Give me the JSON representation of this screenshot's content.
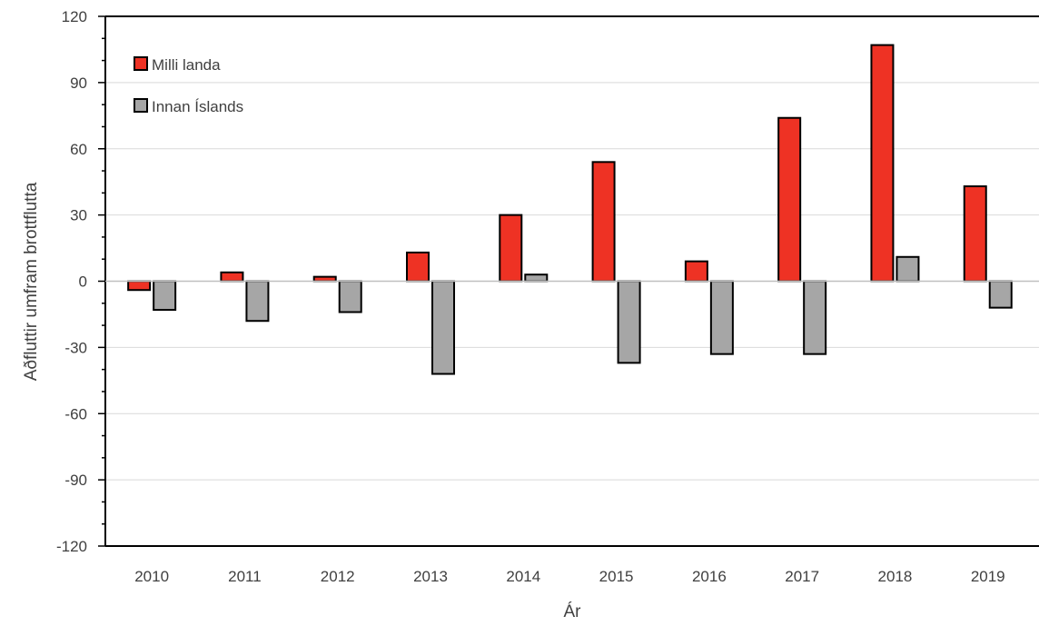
{
  "chart_data": {
    "type": "bar",
    "categories": [
      "2010",
      "2011",
      "2012",
      "2013",
      "2014",
      "2015",
      "2016",
      "2017",
      "2018",
      "2019"
    ],
    "series": [
      {
        "name": "Milli landa",
        "color": "#ee3224",
        "values": [
          -4,
          4,
          2,
          13,
          30,
          54,
          9,
          74,
          107,
          43
        ]
      },
      {
        "name": "Innan Íslands",
        "color": "#a6a6a6",
        "values": [
          -13,
          -18,
          -14,
          -42,
          3,
          -37,
          -33,
          -33,
          11,
          -12
        ]
      }
    ],
    "xlabel": "Ár",
    "ylabel": "Aðfluttir umfram brottflutta",
    "ylim": [
      -120,
      120
    ],
    "yticks": [
      120,
      90,
      60,
      30,
      0,
      -30,
      -60,
      -90,
      -120
    ],
    "grid": true,
    "legend_position": "top-left"
  }
}
